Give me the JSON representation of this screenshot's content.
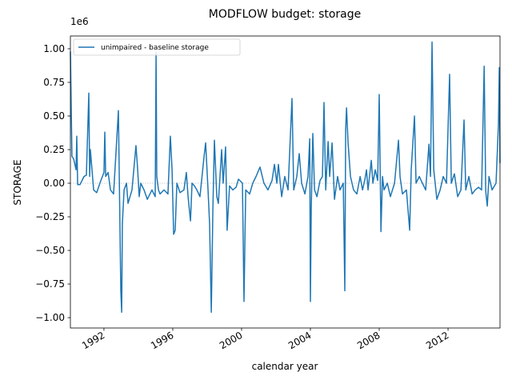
{
  "chart_data": {
    "type": "line",
    "title": "MODFLOW budget: storage",
    "xlabel": "calendar year",
    "ylabel": "STORAGE",
    "y_offset_label": "1e6",
    "xlim": [
      1990.05,
      2015.02
    ],
    "ylim": [
      -1077000,
      1095000
    ],
    "xticks": [
      1992,
      1996,
      2000,
      2004,
      2008,
      2012
    ],
    "yticks": [
      {
        "value": -1000000,
        "label": "−1.00"
      },
      {
        "value": -750000,
        "label": "−0.75"
      },
      {
        "value": -500000,
        "label": "−0.50"
      },
      {
        "value": -250000,
        "label": "−0.25"
      },
      {
        "value": 0,
        "label": "0.00"
      },
      {
        "value": 250000,
        "label": "0.25"
      },
      {
        "value": 500000,
        "label": "0.50"
      },
      {
        "value": 750000,
        "label": "0.75"
      },
      {
        "value": 1000000,
        "label": "1.00"
      }
    ],
    "hline": 0,
    "legend": "upper left",
    "x": [
      1990.05,
      1990.14,
      1990.24,
      1990.38,
      1990.42,
      1990.47,
      1990.61,
      1990.84,
      1990.98,
      1991.12,
      1991.17,
      1991.21,
      1991.4,
      1991.58,
      1991.82,
      1992.0,
      1992.05,
      1992.1,
      1992.24,
      1992.38,
      1992.56,
      1992.84,
      1992.98,
      1993.03,
      1993.07,
      1993.17,
      1993.31,
      1993.4,
      1993.63,
      1993.86,
      1993.96,
      1994.05,
      1994.14,
      1994.33,
      1994.52,
      1994.79,
      1994.98,
      1995.03,
      1995.07,
      1995.17,
      1995.26,
      1995.49,
      1995.72,
      1995.86,
      1995.96,
      1996.05,
      1996.14,
      1996.24,
      1996.42,
      1996.65,
      1996.79,
      1996.89,
      1997.03,
      1997.12,
      1997.26,
      1997.4,
      1997.58,
      1997.82,
      1997.91,
      1998.05,
      1998.14,
      1998.24,
      1998.33,
      1998.42,
      1998.56,
      1998.65,
      1998.84,
      1998.93,
      1999.07,
      1999.16,
      1999.3,
      1999.49,
      1999.68,
      1999.82,
      2000.05,
      2000.14,
      2000.24,
      2000.47,
      2000.65,
      2000.84,
      2001.07,
      2001.3,
      2001.53,
      2001.77,
      2001.91,
      2002.05,
      2002.14,
      2002.33,
      2002.51,
      2002.7,
      2002.93,
      2003.03,
      2003.21,
      2003.35,
      2003.49,
      2003.68,
      2003.86,
      2003.96,
      2004.0,
      2004.05,
      2004.14,
      2004.24,
      2004.38,
      2004.56,
      2004.7,
      2004.79,
      2004.89,
      2005.03,
      2005.12,
      2005.26,
      2005.4,
      2005.58,
      2005.72,
      2005.91,
      2006.0,
      2006.05,
      2006.1,
      2006.19,
      2006.33,
      2006.51,
      2006.7,
      2006.89,
      2007.03,
      2007.17,
      2007.26,
      2007.35,
      2007.54,
      2007.63,
      2007.77,
      2007.91,
      2008.0,
      2008.1,
      2008.19,
      2008.28,
      2008.47,
      2008.65,
      2008.89,
      2009.12,
      2009.21,
      2009.35,
      2009.58,
      2009.77,
      2009.86,
      2010.05,
      2010.14,
      2010.33,
      2010.51,
      2010.7,
      2010.89,
      2010.98,
      2011.07,
      2011.17,
      2011.35,
      2011.54,
      2011.72,
      2011.91,
      2012.09,
      2012.19,
      2012.37,
      2012.56,
      2012.75,
      2012.93,
      2013.03,
      2013.21,
      2013.4,
      2013.58,
      2013.77,
      2013.95,
      2014.1,
      2014.19,
      2014.28,
      2014.38,
      2014.56,
      2014.79,
      2014.93,
      2014.98,
      2015.02
    ],
    "series": [
      {
        "name": "unimpaired - baseline storage",
        "color": "#1f77b4",
        "values": [
          980000,
          200000,
          180000,
          100000,
          350000,
          -10000,
          -10000,
          50000,
          60000,
          670000,
          50000,
          250000,
          -50000,
          -70000,
          20000,
          80000,
          380000,
          50000,
          80000,
          -50000,
          -80000,
          540000,
          -800000,
          -960000,
          -300000,
          -50000,
          0,
          -150000,
          -50000,
          280000,
          100000,
          -100000,
          0,
          -50000,
          -120000,
          -50000,
          -100000,
          970000,
          50000,
          -50000,
          -80000,
          -50000,
          -80000,
          350000,
          100000,
          -380000,
          -350000,
          0,
          -70000,
          -50000,
          80000,
          -100000,
          -280000,
          0,
          -20000,
          -50000,
          -100000,
          200000,
          300000,
          -50000,
          -300000,
          -960000,
          -200000,
          320000,
          -100000,
          -150000,
          250000,
          0,
          270000,
          -350000,
          -20000,
          -50000,
          -30000,
          30000,
          0,
          -880000,
          -50000,
          -80000,
          0,
          50000,
          120000,
          0,
          -50000,
          20000,
          140000,
          0,
          140000,
          -100000,
          50000,
          -50000,
          630000,
          -50000,
          50000,
          220000,
          0,
          -80000,
          50000,
          330000,
          -880000,
          -180000,
          370000,
          -50000,
          -100000,
          20000,
          50000,
          600000,
          -50000,
          310000,
          50000,
          300000,
          -120000,
          50000,
          -50000,
          0,
          -800000,
          400000,
          560000,
          300000,
          50000,
          -50000,
          -80000,
          50000,
          -50000,
          30000,
          100000,
          -50000,
          170000,
          0,
          100000,
          20000,
          660000,
          -360000,
          50000,
          -50000,
          0,
          -100000,
          0,
          320000,
          50000,
          -80000,
          -50000,
          -350000,
          100000,
          500000,
          0,
          50000,
          0,
          -50000,
          290000,
          50000,
          1050000,
          100000,
          -120000,
          -50000,
          50000,
          0,
          810000,
          0,
          70000,
          -100000,
          -50000,
          470000,
          -50000,
          50000,
          -80000,
          -50000,
          -30000,
          -50000,
          870000,
          -60000,
          -170000,
          50000,
          -50000,
          0,
          440000,
          860000,
          150000
        ]
      }
    ]
  }
}
